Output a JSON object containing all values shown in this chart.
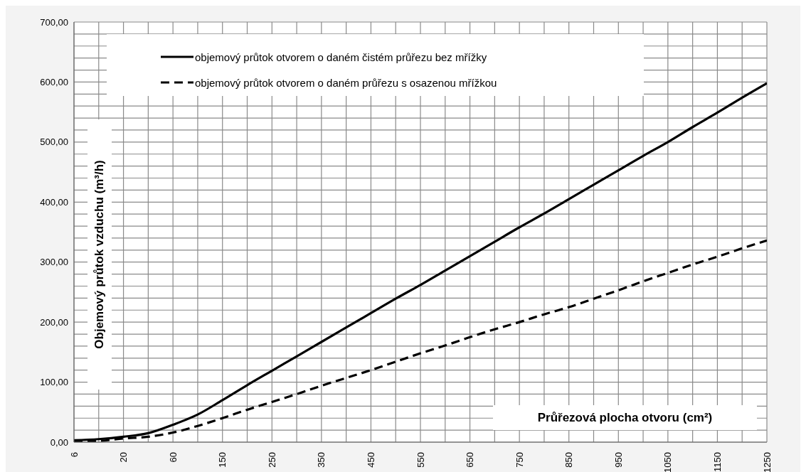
{
  "chart_data": {
    "type": "line",
    "xlabel": "Průřezová plocha otvoru (cm²)",
    "ylabel": "Objemový průtok vzduchu (m³/h)",
    "categories": [
      "6",
      null,
      "20",
      null,
      "60",
      null,
      "150",
      null,
      "250",
      null,
      "350",
      null,
      "450",
      null,
      "550",
      null,
      "650",
      null,
      "750",
      null,
      "850",
      null,
      "950",
      null,
      "1050",
      null,
      "1150",
      null,
      "1250"
    ],
    "series": [
      {
        "name": "objemový průtok otvorem o daném čistém průřezu bez mřížky",
        "color": "#000000",
        "line_style": "solid",
        "values": [
          3,
          5,
          9,
          15,
          29,
          46,
          70,
          95,
          119,
          143,
          167,
          191,
          215,
          239,
          262,
          286,
          310,
          334,
          358,
          381,
          405,
          429,
          453,
          477,
          500,
          525,
          549,
          574,
          598
        ]
      },
      {
        "name": "objemový průtok otvorem o daném průřezu s osazenou mřížkou",
        "color": "#000000",
        "line_style": "dashed",
        "values": [
          1,
          2,
          6,
          9,
          16,
          27,
          40,
          54,
          67,
          80,
          94,
          107,
          120,
          134,
          148,
          161,
          175,
          188,
          200,
          213,
          225,
          239,
          253,
          268,
          282,
          296,
          309,
          323,
          336
        ]
      }
    ],
    "ylim": [
      0,
      700
    ],
    "yticks": [
      {
        "value": 0,
        "label": "0,00"
      },
      {
        "value": 20,
        "label": null
      },
      {
        "value": 40,
        "label": null
      },
      {
        "value": 60,
        "label": null
      },
      {
        "value": 80,
        "label": null
      },
      {
        "value": 100,
        "label": "100,00"
      },
      {
        "value": 120,
        "label": null
      },
      {
        "value": 140,
        "label": null
      },
      {
        "value": 160,
        "label": null
      },
      {
        "value": 180,
        "label": null
      },
      {
        "value": 200,
        "label": "200,00"
      },
      {
        "value": 220,
        "label": null
      },
      {
        "value": 240,
        "label": null
      },
      {
        "value": 260,
        "label": null
      },
      {
        "value": 280,
        "label": null
      },
      {
        "value": 300,
        "label": "300,00"
      },
      {
        "value": 320,
        "label": null
      },
      {
        "value": 340,
        "label": null
      },
      {
        "value": 360,
        "label": null
      },
      {
        "value": 380,
        "label": null
      },
      {
        "value": 400,
        "label": "400,00"
      },
      {
        "value": 420,
        "label": null
      },
      {
        "value": 440,
        "label": null
      },
      {
        "value": 460,
        "label": null
      },
      {
        "value": 480,
        "label": null
      },
      {
        "value": 500,
        "label": "500,00"
      },
      {
        "value": 520,
        "label": null
      },
      {
        "value": 540,
        "label": null
      },
      {
        "value": 560,
        "label": null
      },
      {
        "value": 580,
        "label": null
      },
      {
        "value": 600,
        "label": "600,00"
      },
      {
        "value": 620,
        "label": null
      },
      {
        "value": 640,
        "label": null
      },
      {
        "value": 660,
        "label": null
      },
      {
        "value": 680,
        "label": null
      },
      {
        "value": 700,
        "label": "700,00"
      }
    ],
    "grid": true,
    "legend": "top",
    "marker": "none"
  }
}
